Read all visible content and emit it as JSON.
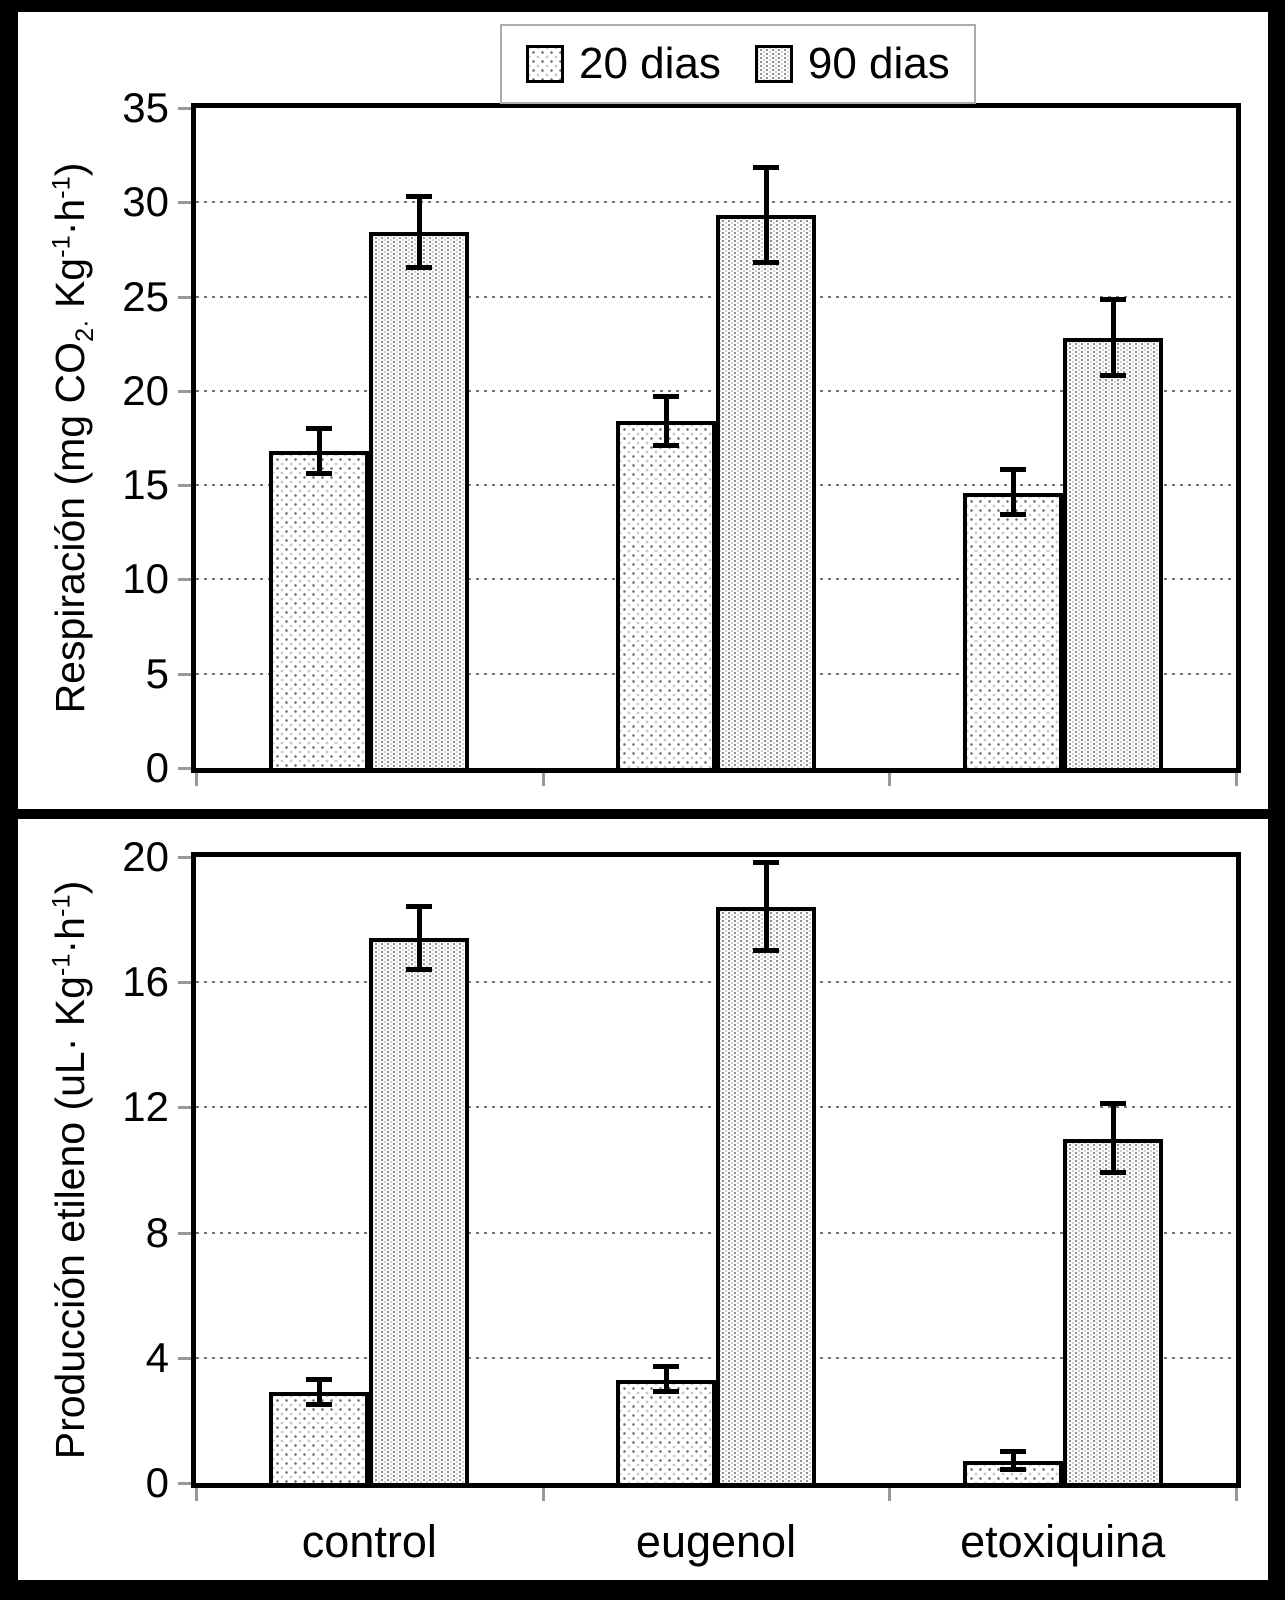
{
  "figure": {
    "background": "#000000",
    "panel_background": "#ffffff",
    "accent_color": "#000000",
    "tick_color": "#999999",
    "gridline_color": "#777777",
    "legend": {
      "items": [
        {
          "label": "20 dias",
          "pattern": "dots-sparse"
        },
        {
          "label": "90 dias",
          "pattern": "dots-dense"
        }
      ]
    },
    "categories": [
      "control",
      "eugenol",
      "etoxiquina"
    ]
  },
  "chart_data": [
    {
      "type": "bar",
      "panel": "top",
      "title": "",
      "ylabel": "Respiración (mg CO₂· Kg⁻¹·h⁻¹)",
      "ylabel_parts": [
        {
          "t": "Respiración (mg CO"
        },
        {
          "t": "2·",
          "s": "sub"
        },
        {
          "t": " Kg"
        },
        {
          "t": "-1",
          "s": "sup"
        },
        {
          "t": "·h"
        },
        {
          "t": "-1",
          "s": "sup"
        },
        {
          "t": ")"
        }
      ],
      "xlabel": "",
      "ylim": [
        0,
        35
      ],
      "yticks": [
        0,
        5,
        10,
        15,
        20,
        25,
        30,
        35
      ],
      "grid": "horizontal-dotted",
      "legend_position": "top-center",
      "categories": [
        "control",
        "eugenol",
        "etoxiquina"
      ],
      "series": [
        {
          "name": "20 dias",
          "pattern": "dots-sparse",
          "values": [
            16.8,
            18.4,
            14.6
          ],
          "errors": [
            1.2,
            1.3,
            1.2
          ]
        },
        {
          "name": "90 dias",
          "pattern": "dots-dense",
          "values": [
            28.4,
            29.3,
            22.8
          ],
          "errors": [
            1.9,
            2.5,
            2.0
          ]
        }
      ],
      "show_x_labels": false
    },
    {
      "type": "bar",
      "panel": "bottom",
      "title": "",
      "ylabel": "Producción etileno (uL· Kg⁻¹·h⁻¹)",
      "ylabel_parts": [
        {
          "t": "Producción etileno (uL· Kg"
        },
        {
          "t": "-1",
          "s": "sup"
        },
        {
          "t": "·h"
        },
        {
          "t": "-1",
          "s": "sup"
        },
        {
          "t": ")"
        }
      ],
      "xlabel": "",
      "ylim": [
        0,
        20
      ],
      "yticks": [
        0,
        4,
        8,
        12,
        16,
        20
      ],
      "grid": "horizontal-dotted",
      "categories": [
        "control",
        "eugenol",
        "etoxiquina"
      ],
      "series": [
        {
          "name": "20 dias",
          "pattern": "dots-sparse",
          "values": [
            2.9,
            3.3,
            0.7
          ],
          "errors": [
            0.4,
            0.4,
            0.3
          ]
        },
        {
          "name": "90 dias",
          "pattern": "dots-dense",
          "values": [
            17.4,
            18.4,
            11.0
          ],
          "errors": [
            1.0,
            1.4,
            1.1
          ]
        }
      ],
      "show_x_labels": true
    }
  ]
}
